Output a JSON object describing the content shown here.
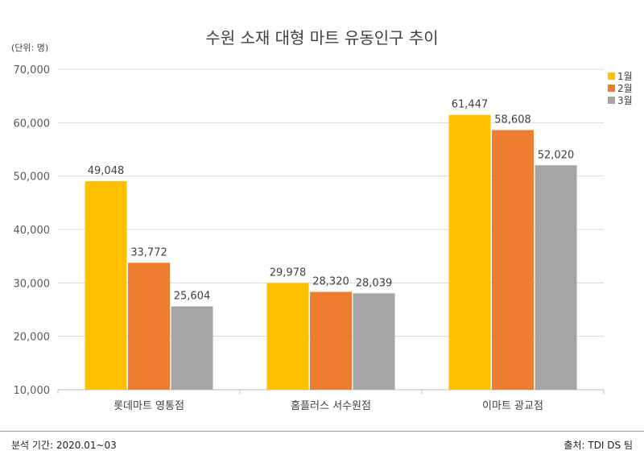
{
  "chart_data": {
    "type": "bar",
    "title": "수원 소재 대형 마트 유동인구 추이",
    "unit_label": "(단위: 명)",
    "categories": [
      "롯데마트 영통점",
      "홈플러스 서수원점",
      "이마트 광교점"
    ],
    "series": [
      {
        "name": "1월",
        "values": [
          49048,
          29978,
          61447
        ],
        "color": "#FFC000"
      },
      {
        "name": "2월",
        "values": [
          33772,
          28320,
          58608
        ],
        "color": "#ED7D31"
      },
      {
        "name": "3월",
        "values": [
          25604,
          28039,
          52020
        ],
        "color": "#A5A5A5"
      }
    ],
    "data_labels": [
      [
        "49,048",
        "29,978",
        "61,447"
      ],
      [
        "33,772",
        "28,320",
        "58,608"
      ],
      [
        "25,604",
        "28,039",
        "52,020"
      ]
    ],
    "ylim": [
      10000,
      70000
    ],
    "yticks": [
      10000,
      20000,
      30000,
      40000,
      50000,
      60000,
      70000
    ],
    "ytick_labels": [
      "10,000",
      "20,000",
      "30,000",
      "40,000",
      "50,000",
      "60,000",
      "70,000"
    ],
    "grid": true,
    "legend_position": "right"
  },
  "footer": {
    "left": "분석 기간: 2020.01~03",
    "right": "출처: TDI DS 팀"
  }
}
